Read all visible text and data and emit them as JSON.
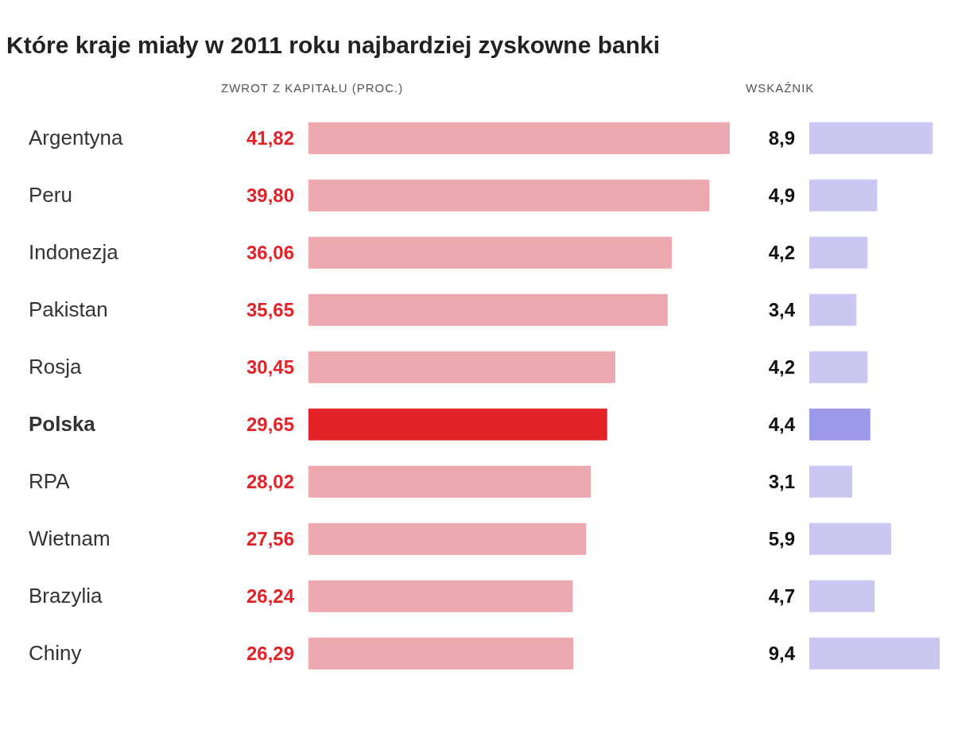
{
  "chart_data": [
    {
      "type": "bar",
      "orientation": "horizontal",
      "title": "Które kraje miały w 2011 roku najbardziej zyskowne banki",
      "xlabel": "ZWROT Z KAPITAŁU (PROC.)",
      "categories": [
        "Argentyna",
        "Peru",
        "Indonezja",
        "Pakistan",
        "Rosja",
        "Polska",
        "RPA",
        "Wietnam",
        "Brazylia",
        "Chiny"
      ],
      "values": [
        41.82,
        39.8,
        36.06,
        35.65,
        30.45,
        29.65,
        28.02,
        27.56,
        26.24,
        26.29
      ],
      "value_labels": [
        "41,82",
        "39,80",
        "36,06",
        "35,65",
        "30,45",
        "29,65",
        "28,02",
        "27,56",
        "26,24",
        "26,29"
      ],
      "colors": [
        "#eba8ae",
        "#eba8ae",
        "#eba8ae",
        "#eba8ae",
        "#eba8ae",
        "#e32228",
        "#eba8ae",
        "#eba8ae",
        "#eba8ae",
        "#eba8ae"
      ],
      "tick_labels": "y"
    },
    {
      "type": "bar",
      "orientation": "horizontal",
      "xlabel": "WSKAŹNIK",
      "values": [
        8.9,
        4.9,
        4.2,
        3.4,
        4.2,
        4.4,
        3.1,
        5.9,
        4.7,
        9.4
      ],
      "value_labels": [
        "8,9",
        "4,9",
        "4,2",
        "3,4",
        "4,2",
        "4,4",
        "3,1",
        "5,9",
        "4,7",
        "9,4"
      ],
      "colors": [
        "#c9c8f2",
        "#c9c8f2",
        "#c9c8f2",
        "#c9c8f2",
        "#c9c8f2",
        "#9d98ea",
        "#c9c8f2",
        "#c9c8f2",
        "#c9c8f2",
        "#c9c8f2"
      ],
      "tick_labels": false
    }
  ]
}
